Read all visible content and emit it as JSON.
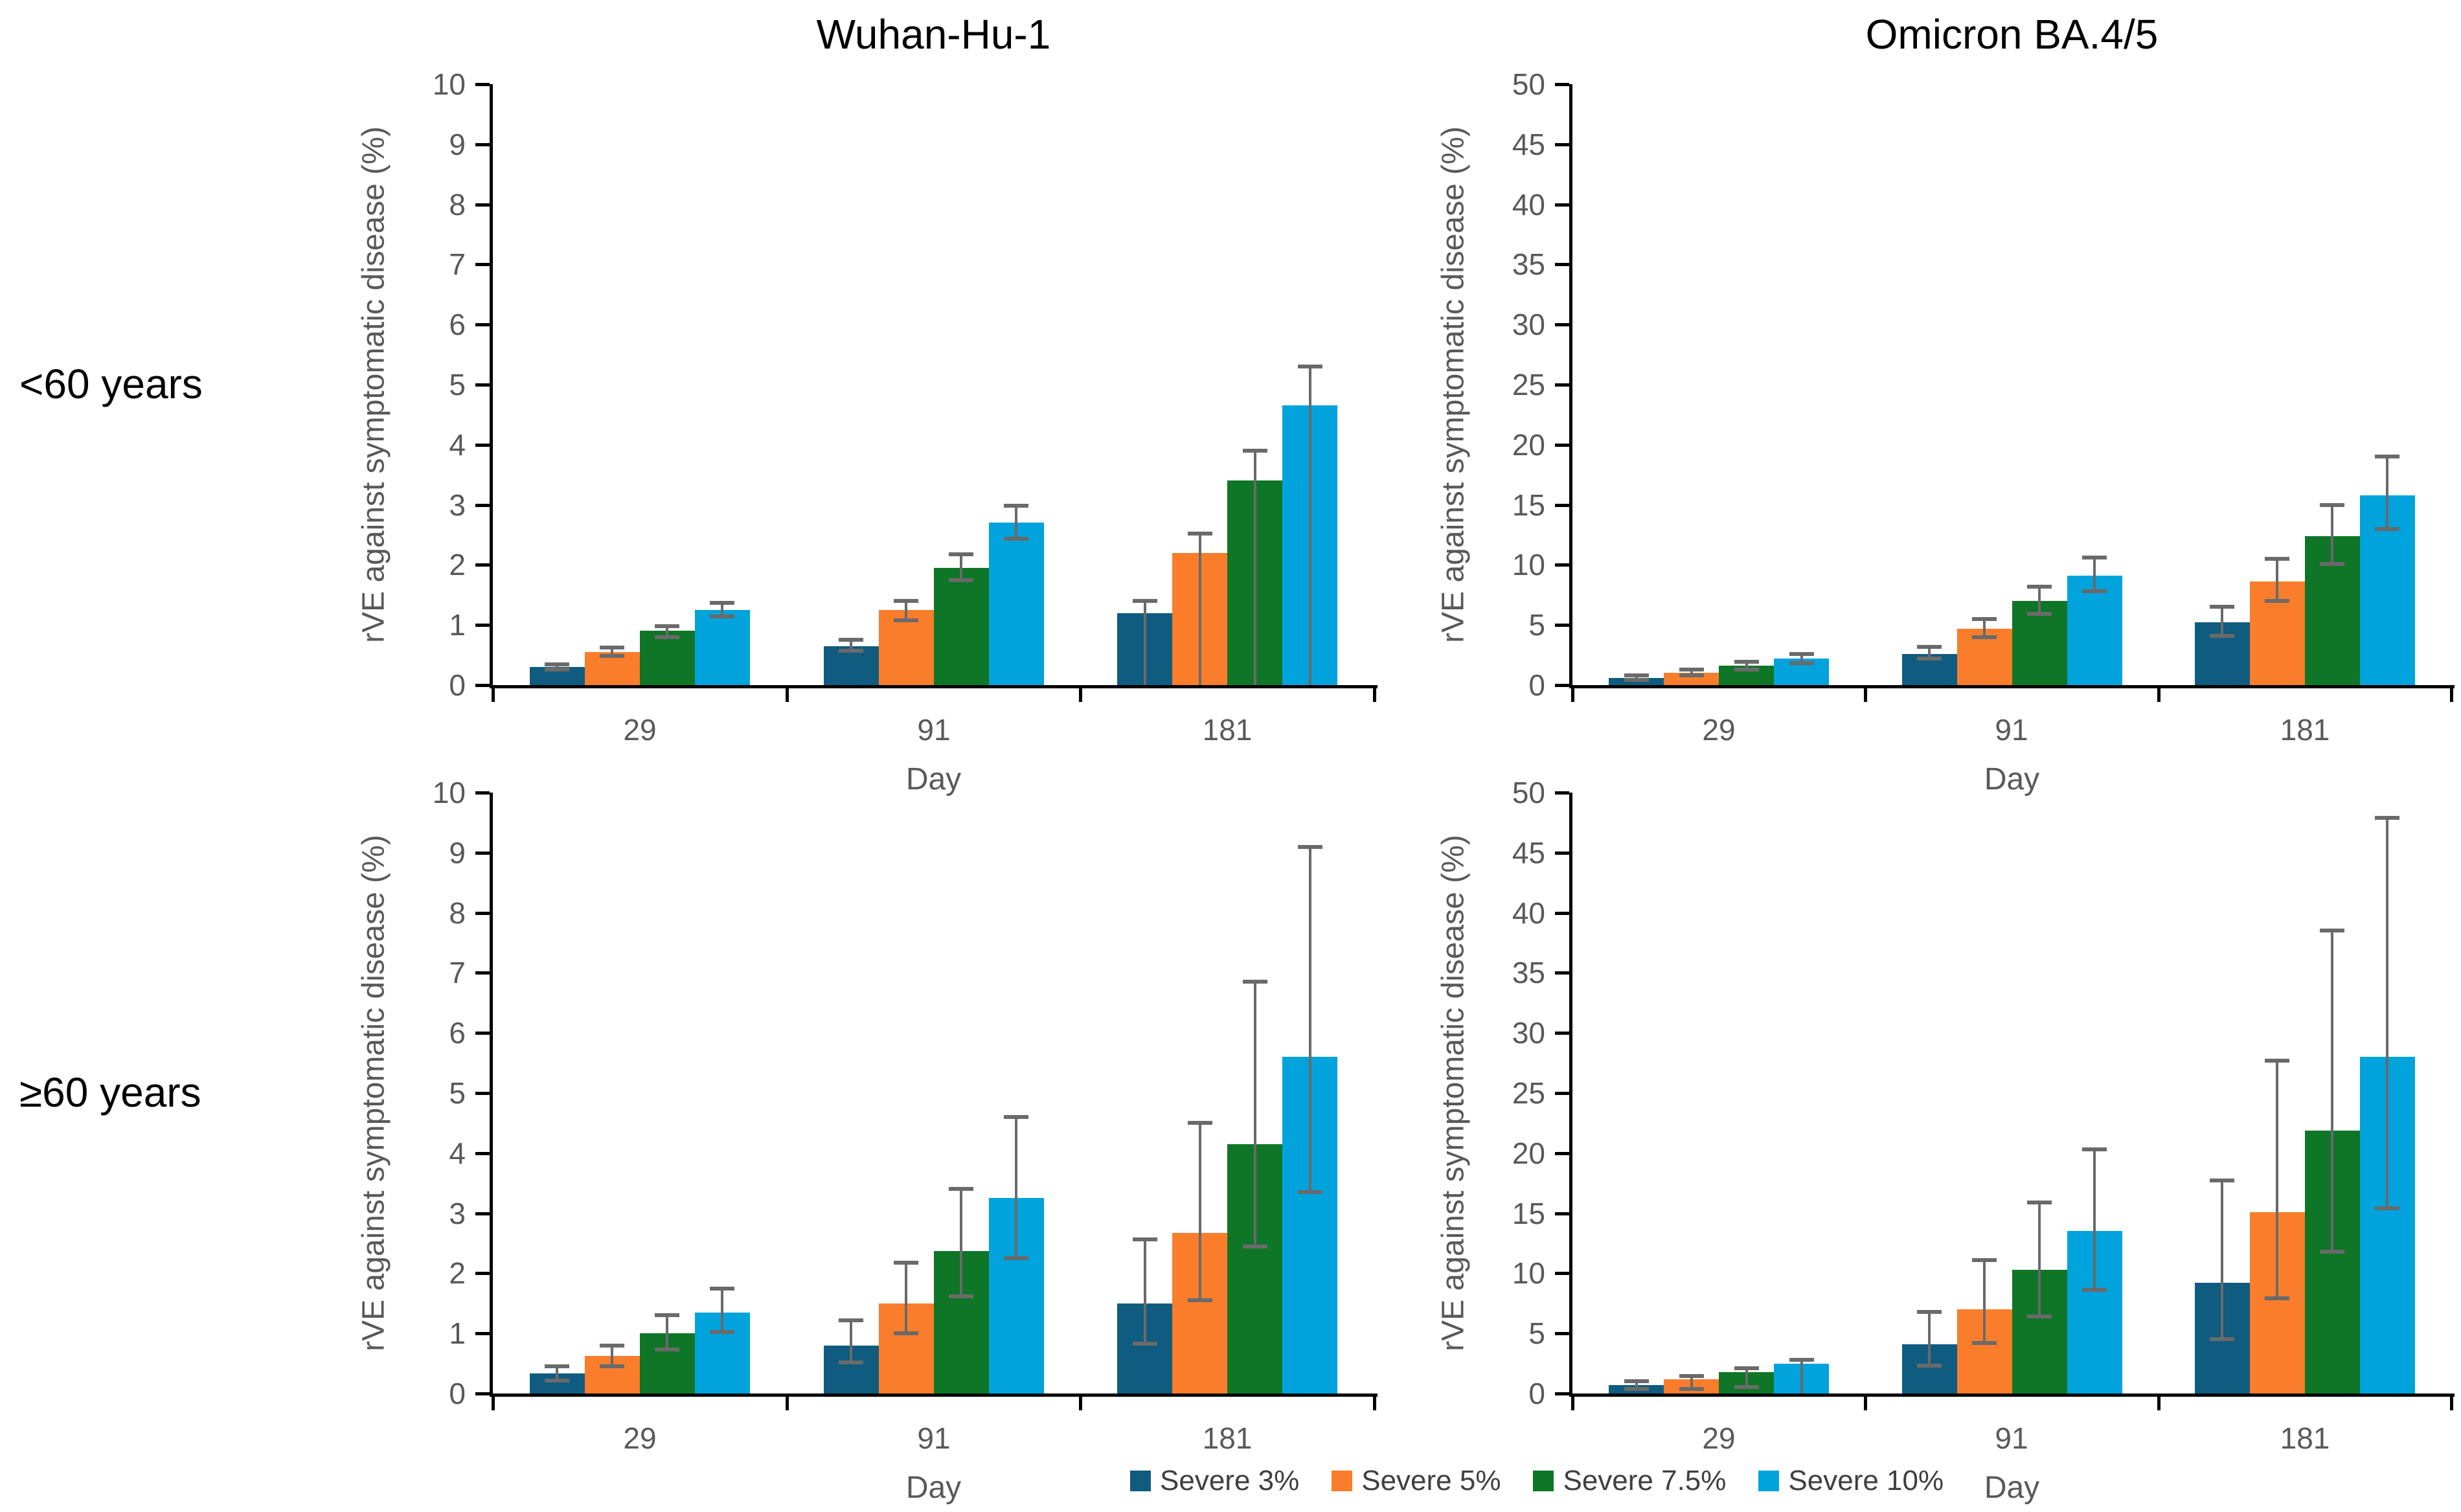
{
  "column_titles": [
    "Wuhan-Hu-1",
    "Omicron BA.4/5"
  ],
  "row_labels": [
    "<60 years",
    "≥60 years"
  ],
  "legend": {
    "items": [
      {
        "label": "Severe 3%",
        "color": "#0F5C80"
      },
      {
        "label": "Severe 5%",
        "color": "#F97D2B"
      },
      {
        "label": "Severe 7.5%",
        "color": "#0F7527"
      },
      {
        "label": "Severe 10%",
        "color": "#00A3DB"
      }
    ]
  },
  "colors": {
    "axis": "#000000",
    "tick_label": "#595959",
    "axis_title": "#595959",
    "error_bar": "#6A6A6A",
    "title_text": "#000000",
    "legend_text": "#3F3F3F"
  },
  "chart_data": [
    {
      "panel": "wuhan-under-60",
      "type": "bar",
      "column_title": "Wuhan-Hu-1",
      "row_label": "<60 years",
      "xlabel": "Day",
      "ylabel": "rVE against symptomatic disease (%)",
      "ylim": [
        0,
        10
      ],
      "ytick_step": 1,
      "grid": false,
      "categories": [
        "29",
        "91",
        "181"
      ],
      "series": [
        {
          "name": "Severe 3%",
          "color": "#0F5C80",
          "values": [
            0.3,
            0.65,
            1.2
          ],
          "ci_low": [
            0.26,
            0.57,
            0
          ],
          "ci_high": [
            0.34,
            0.75,
            1.4
          ]
        },
        {
          "name": "Severe 5%",
          "color": "#F97D2B",
          "values": [
            0.55,
            1.25,
            2.2
          ],
          "ci_low": [
            0.49,
            1.08,
            0
          ],
          "ci_high": [
            0.62,
            1.4,
            2.52
          ]
        },
        {
          "name": "Severe 7.5%",
          "color": "#0F7527",
          "values": [
            0.9,
            1.95,
            3.4
          ],
          "ci_low": [
            0.8,
            1.75,
            0
          ],
          "ci_high": [
            0.98,
            2.18,
            3.9
          ]
        },
        {
          "name": "Severe 10%",
          "color": "#00A3DB",
          "values": [
            1.25,
            2.7,
            4.65
          ],
          "ci_low": [
            1.14,
            2.43,
            0
          ],
          "ci_high": [
            1.37,
            2.98,
            5.3
          ]
        }
      ]
    },
    {
      "panel": "omicron-under-60",
      "type": "bar",
      "column_title": "Omicron BA.4/5",
      "row_label": "<60 years",
      "xlabel": "Day",
      "ylabel": "rVE against symptomatic disease (%)",
      "ylim": [
        0,
        50
      ],
      "ytick_step": 5,
      "grid": false,
      "categories": [
        "29",
        "91",
        "181"
      ],
      "series": [
        {
          "name": "Severe 3%",
          "color": "#0F5C80",
          "values": [
            0.6,
            2.6,
            5.2
          ],
          "ci_low": [
            0.45,
            2.2,
            4.1
          ],
          "ci_high": [
            0.8,
            3.2,
            6.5
          ]
        },
        {
          "name": "Severe 5%",
          "color": "#F97D2B",
          "values": [
            1.0,
            4.7,
            8.6
          ],
          "ci_low": [
            0.8,
            4.0,
            7.0
          ],
          "ci_high": [
            1.3,
            5.5,
            10.5
          ]
        },
        {
          "name": "Severe 7.5%",
          "color": "#0F7527",
          "values": [
            1.6,
            7.0,
            12.4
          ],
          "ci_low": [
            1.3,
            5.9,
            10.1
          ],
          "ci_high": [
            1.95,
            8.2,
            15.0
          ]
        },
        {
          "name": "Severe 10%",
          "color": "#00A3DB",
          "values": [
            2.2,
            9.1,
            15.8
          ],
          "ci_low": [
            1.85,
            7.8,
            13.0
          ],
          "ci_high": [
            2.6,
            10.6,
            19.0
          ]
        }
      ]
    },
    {
      "panel": "wuhan-60-plus",
      "type": "bar",
      "column_title": "Wuhan-Hu-1",
      "row_label": "≥60 years",
      "xlabel": "Day",
      "ylabel": "rVE against symptomatic disease (%)",
      "ylim": [
        0,
        10
      ],
      "ytick_step": 1,
      "grid": false,
      "categories": [
        "29",
        "91",
        "181"
      ],
      "series": [
        {
          "name": "Severe 3%",
          "color": "#0F5C80",
          "values": [
            0.33,
            0.8,
            1.5
          ],
          "ci_low": [
            0.22,
            0.52,
            0.83
          ],
          "ci_high": [
            0.45,
            1.22,
            2.57
          ]
        },
        {
          "name": "Severe 5%",
          "color": "#F97D2B",
          "values": [
            0.62,
            1.5,
            2.67
          ],
          "ci_low": [
            0.45,
            1.0,
            1.55
          ],
          "ci_high": [
            0.8,
            2.18,
            4.5
          ]
        },
        {
          "name": "Severe 7.5%",
          "color": "#0F7527",
          "values": [
            1.0,
            2.37,
            4.15
          ],
          "ci_low": [
            0.73,
            1.62,
            2.45
          ],
          "ci_high": [
            1.3,
            3.4,
            6.85
          ]
        },
        {
          "name": "Severe 10%",
          "color": "#00A3DB",
          "values": [
            1.35,
            3.25,
            5.6
          ],
          "ci_low": [
            1.02,
            2.25,
            3.35
          ],
          "ci_high": [
            1.75,
            4.6,
            9.1
          ]
        }
      ]
    },
    {
      "panel": "omicron-60-plus",
      "type": "bar",
      "column_title": "Omicron BA.4/5",
      "row_label": "≥60 years",
      "xlabel": "Day",
      "ylabel": "rVE against symptomatic disease (%)",
      "ylim": [
        0,
        50
      ],
      "ytick_step": 5,
      "grid": false,
      "categories": [
        "29",
        "91",
        "181"
      ],
      "series": [
        {
          "name": "Severe 3%",
          "color": "#0F5C80",
          "values": [
            0.7,
            4.1,
            9.2
          ],
          "ci_low": [
            0.4,
            2.3,
            4.5
          ],
          "ci_high": [
            1.0,
            6.8,
            17.7
          ]
        },
        {
          "name": "Severe 5%",
          "color": "#F97D2B",
          "values": [
            1.2,
            7.0,
            15.1
          ],
          "ci_low": [
            0.4,
            4.2,
            7.9
          ],
          "ci_high": [
            1.45,
            11.1,
            27.7
          ]
        },
        {
          "name": "Severe 7.5%",
          "color": "#0F7527",
          "values": [
            1.8,
            10.3,
            21.9
          ],
          "ci_low": [
            0.55,
            6.4,
            11.8
          ],
          "ci_high": [
            2.1,
            15.9,
            38.5
          ]
        },
        {
          "name": "Severe 10%",
          "color": "#00A3DB",
          "values": [
            2.5,
            13.5,
            28.0
          ],
          "ci_low": [
            0,
            8.6,
            15.4
          ],
          "ci_high": [
            2.8,
            20.3,
            47.9
          ]
        }
      ]
    }
  ]
}
